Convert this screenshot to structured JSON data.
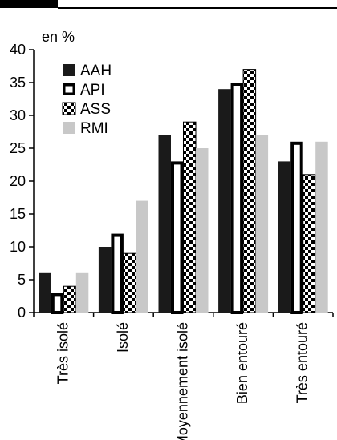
{
  "chart_data": {
    "type": "bar",
    "unit_label": "en %",
    "categories": [
      "Très isolé",
      "Isolé",
      "Moyennement isolé",
      "Bien entouré",
      "Très entouré"
    ],
    "series": [
      {
        "name": "AAH",
        "values": [
          6,
          10,
          27,
          34,
          23
        ],
        "pattern": "solid-black"
      },
      {
        "name": "API",
        "values": [
          3,
          12,
          23,
          35,
          26
        ],
        "pattern": "outline-white"
      },
      {
        "name": "ASS",
        "values": [
          4,
          9,
          29,
          37,
          21
        ],
        "pattern": "checker"
      },
      {
        "name": "RMI",
        "values": [
          6,
          17,
          25,
          27,
          26
        ],
        "pattern": "solid-gray"
      }
    ],
    "ylim": [
      0,
      40
    ],
    "yticks": [
      0,
      5,
      10,
      15,
      20,
      25,
      30,
      35,
      40
    ],
    "legend_position": "top-left",
    "grid": false,
    "colors": {
      "black": "#1a1a1a",
      "gray": "#c8c8c8",
      "white": "#ffffff"
    }
  }
}
